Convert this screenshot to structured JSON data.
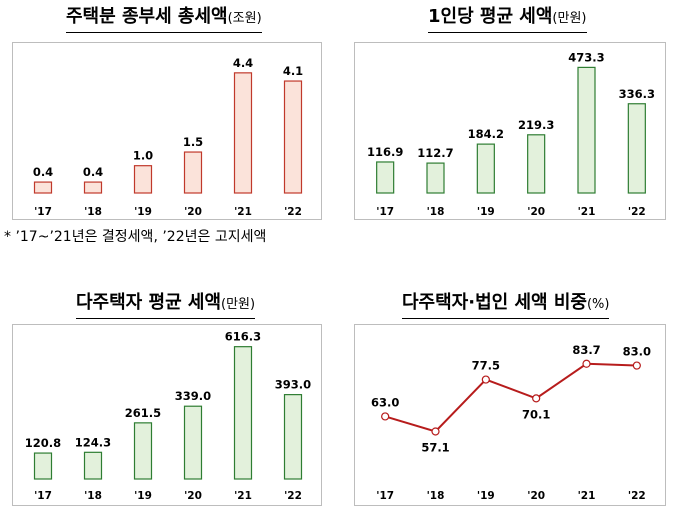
{
  "note": "* ’17~’21년은 결정세액, ’22년은 고지세액",
  "chart_data": [
    {
      "type": "bar",
      "title": "주택분 종부세 총세액",
      "unit": "(조원)",
      "categories": [
        "'17",
        "'18",
        "'19",
        "'20",
        "'21",
        "'22"
      ],
      "values": [
        0.4,
        0.4,
        1.0,
        1.5,
        4.4,
        4.1
      ],
      "value_labels": [
        "0.4",
        "0.4",
        "1.0",
        "1.5",
        "4.4",
        "4.1"
      ],
      "ylim": [
        0,
        5.2
      ],
      "bar_fill": "#fbe3da",
      "bar_stroke": "#c0392b",
      "grid": false
    },
    {
      "type": "bar",
      "title": "1인당 평균 세액",
      "unit": "(만원)",
      "categories": [
        "'17",
        "'18",
        "'19",
        "'20",
        "'21",
        "'22"
      ],
      "values": [
        116.9,
        112.7,
        184.2,
        219.3,
        473.3,
        336.3
      ],
      "value_labels": [
        "116.9",
        "112.7",
        "184.2",
        "219.3",
        "473.3",
        "336.3"
      ],
      "ylim": [
        0,
        520
      ],
      "bar_fill": "#e3f1dc",
      "bar_stroke": "#2e7d32",
      "grid": false
    },
    {
      "type": "bar",
      "title": "다주택자 평균 세액",
      "unit": "(만원)",
      "categories": [
        "'17",
        "'18",
        "'19",
        "'20",
        "'21",
        "'22"
      ],
      "values": [
        120.8,
        124.3,
        261.5,
        339.0,
        616.3,
        393.0
      ],
      "value_labels": [
        "120.8",
        "124.3",
        "261.5",
        "339.0",
        "616.3",
        "393.0"
      ],
      "ylim": [
        0,
        680
      ],
      "bar_fill": "#e3f1dc",
      "bar_stroke": "#2e7d32",
      "grid": false
    },
    {
      "type": "line",
      "title": "다주택자·법인 세액 비중",
      "unit": "(%)",
      "categories": [
        "'17",
        "'18",
        "'19",
        "'20",
        "'21",
        "'22"
      ],
      "values": [
        63.0,
        57.1,
        77.5,
        70.1,
        83.7,
        83.0
      ],
      "value_labels": [
        "63.0",
        "57.1",
        "77.5",
        "70.1",
        "83.7",
        "83.0"
      ],
      "ylim": [
        40,
        95
      ],
      "line_color": "#b71c1c",
      "marker_fill": "#ffffff",
      "grid": false
    }
  ]
}
